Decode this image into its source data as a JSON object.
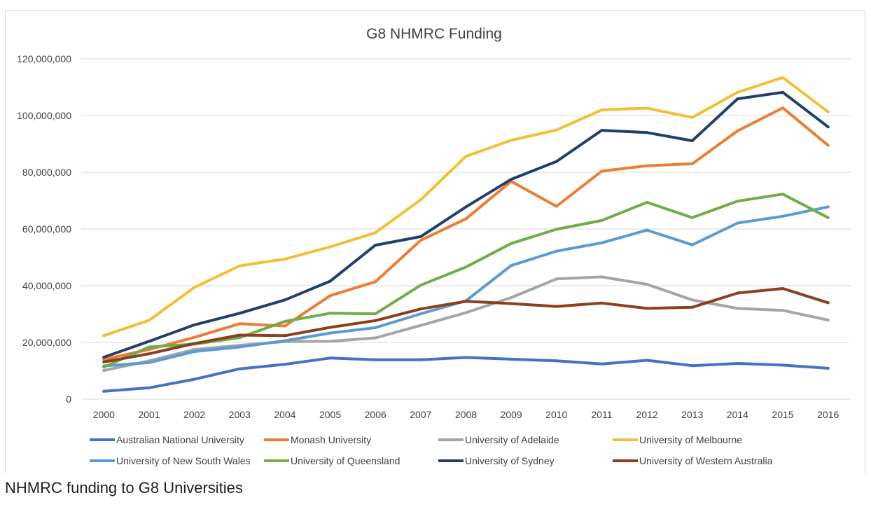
{
  "caption": "NHMRC funding to G8 Universities",
  "chart_data": {
    "type": "line",
    "title": "G8 NHMRC Funding",
    "xlabel": "",
    "ylabel": "",
    "ylim": [
      0,
      120000000
    ],
    "yticks": [
      0,
      20000000,
      40000000,
      60000000,
      80000000,
      100000000,
      120000000
    ],
    "ytick_labels": [
      "0",
      "20,000,000",
      "40,000,000",
      "60,000,000",
      "80,000,000",
      "100,000,000",
      "120,000,000"
    ],
    "grid": true,
    "legend_position": "bottom",
    "categories": [
      "2000",
      "2001",
      "2002",
      "2003",
      "2004",
      "2005",
      "2006",
      "2007",
      "2008",
      "2009",
      "2010",
      "2011",
      "2012",
      "2013",
      "2014",
      "2015",
      "2016"
    ],
    "series": [
      {
        "name": "Australian National University",
        "color": "#4472c4",
        "values": [
          2800000,
          4000000,
          7000000,
          10700000,
          12300000,
          14500000,
          13900000,
          13900000,
          14700000,
          14100000,
          13500000,
          12400000,
          13700000,
          11800000,
          12600000,
          12000000,
          10900000
        ]
      },
      {
        "name": "Monash University",
        "color": "#ed7d31",
        "values": [
          14000000,
          17500000,
          21800000,
          26600000,
          25800000,
          36500000,
          41400000,
          56000000,
          63600000,
          76800000,
          68000000,
          80400000,
          82300000,
          83000000,
          94600000,
          102700000,
          89500000
        ]
      },
      {
        "name": "University of Adelaide",
        "color": "#a5a5a5",
        "values": [
          10100000,
          13500000,
          17500000,
          19000000,
          20300000,
          20400000,
          21600000,
          26000000,
          30500000,
          35800000,
          42400000,
          43100000,
          40500000,
          35000000,
          32000000,
          31300000,
          27900000
        ]
      },
      {
        "name": "University of Melbourne",
        "color": "#f2c037",
        "values": [
          22400000,
          27800000,
          39400000,
          47000000,
          49400000,
          53700000,
          58700000,
          70300000,
          85600000,
          91300000,
          94900000,
          102000000,
          102600000,
          99300000,
          108200000,
          113400000,
          101300000
        ]
      },
      {
        "name": "University of New South Wales",
        "color": "#5b9bd5",
        "values": [
          11700000,
          12900000,
          16800000,
          18400000,
          20600000,
          23300000,
          25200000,
          30100000,
          34700000,
          47100000,
          52200000,
          55100000,
          59600000,
          54400000,
          62100000,
          64500000,
          67800000
        ]
      },
      {
        "name": "University of Queensland",
        "color": "#70ad47",
        "values": [
          11300000,
          18400000,
          19400000,
          21700000,
          27400000,
          30300000,
          30100000,
          40200000,
          46600000,
          54900000,
          59900000,
          63000000,
          69400000,
          64000000,
          69800000,
          72300000,
          64000000
        ]
      },
      {
        "name": "University of Sydney",
        "color": "#223f6b",
        "values": [
          14800000,
          20400000,
          26200000,
          30300000,
          35000000,
          41600000,
          54300000,
          57300000,
          67800000,
          77500000,
          83800000,
          94800000,
          94000000,
          91100000,
          105900000,
          108200000,
          96000000
        ]
      },
      {
        "name": "University of Western Australia",
        "color": "#8b3f1c",
        "values": [
          13100000,
          16000000,
          19600000,
          22600000,
          22400000,
          25300000,
          27700000,
          31800000,
          34500000,
          33700000,
          32700000,
          33900000,
          32000000,
          32400000,
          37400000,
          39000000,
          34000000
        ]
      }
    ]
  }
}
